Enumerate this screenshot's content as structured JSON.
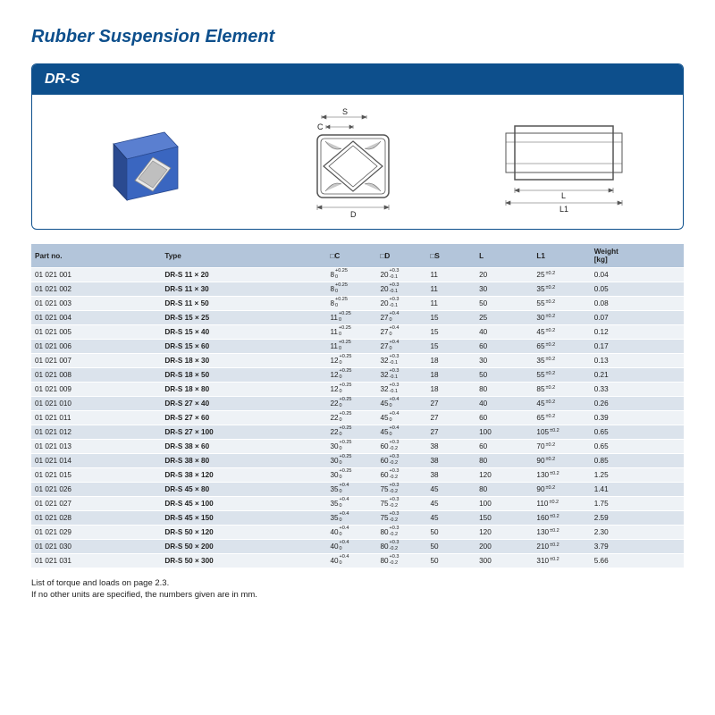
{
  "title": "Rubber Suspension Element",
  "panel_label": "DR-S",
  "colors": {
    "brand": "#0d4f8c",
    "header_bg": "#b3c5da",
    "row_even": "#dbe3ec",
    "row_odd": "#eef2f6",
    "cube_blue": "#3a66c0",
    "cube_dark": "#2a4a90",
    "line": "#555555"
  },
  "diagram_labels": {
    "S": "S",
    "C": "C",
    "D": "D",
    "L": "L",
    "L1": "L1"
  },
  "table": {
    "columns": [
      "Part no.",
      "Type",
      "□C",
      "□D",
      "□S",
      "L",
      "L1",
      "Weight [kg]"
    ],
    "rows": [
      {
        "part": "01 021 001",
        "type": "DR-S 11 × 20",
        "C": {
          "b": "8",
          "u": "+0.25",
          "l": "0"
        },
        "D": {
          "b": "20",
          "u": "+0.3",
          "l": "-0.1"
        },
        "S": "11",
        "L": "20",
        "L1": {
          "b": "25",
          "t": "±0.2"
        },
        "W": "0.04"
      },
      {
        "part": "01 021 002",
        "type": "DR-S 11 × 30",
        "C": {
          "b": "8",
          "u": "+0.25",
          "l": "0"
        },
        "D": {
          "b": "20",
          "u": "+0.3",
          "l": "-0.1"
        },
        "S": "11",
        "L": "30",
        "L1": {
          "b": "35",
          "t": "±0.2"
        },
        "W": "0.05"
      },
      {
        "part": "01 021 003",
        "type": "DR-S 11 × 50",
        "C": {
          "b": "8",
          "u": "+0.25",
          "l": "0"
        },
        "D": {
          "b": "20",
          "u": "+0.3",
          "l": "-0.1"
        },
        "S": "11",
        "L": "50",
        "L1": {
          "b": "55",
          "t": "±0.2"
        },
        "W": "0.08"
      },
      {
        "part": "01 021 004",
        "type": "DR-S 15 × 25",
        "C": {
          "b": "11",
          "u": "+0.25",
          "l": "0"
        },
        "D": {
          "b": "27",
          "u": "+0.4",
          "l": "0"
        },
        "S": "15",
        "L": "25",
        "L1": {
          "b": "30",
          "t": "±0.2"
        },
        "W": "0.07"
      },
      {
        "part": "01 021 005",
        "type": "DR-S 15 × 40",
        "C": {
          "b": "11",
          "u": "+0.25",
          "l": "0"
        },
        "D": {
          "b": "27",
          "u": "+0.4",
          "l": "0"
        },
        "S": "15",
        "L": "40",
        "L1": {
          "b": "45",
          "t": "±0.2"
        },
        "W": "0.12"
      },
      {
        "part": "01 021 006",
        "type": "DR-S 15 × 60",
        "C": {
          "b": "11",
          "u": "+0.25",
          "l": "0"
        },
        "D": {
          "b": "27",
          "u": "+0.4",
          "l": "0"
        },
        "S": "15",
        "L": "60",
        "L1": {
          "b": "65",
          "t": "±0.2"
        },
        "W": "0.17"
      },
      {
        "part": "01 021 007",
        "type": "DR-S 18 × 30",
        "C": {
          "b": "12",
          "u": "+0.25",
          "l": "0"
        },
        "D": {
          "b": "32",
          "u": "+0.3",
          "l": "-0.1"
        },
        "S": "18",
        "L": "30",
        "L1": {
          "b": "35",
          "t": "±0.2"
        },
        "W": "0.13"
      },
      {
        "part": "01 021 008",
        "type": "DR-S 18 × 50",
        "C": {
          "b": "12",
          "u": "+0.25",
          "l": "0"
        },
        "D": {
          "b": "32",
          "u": "+0.3",
          "l": "-0.1"
        },
        "S": "18",
        "L": "50",
        "L1": {
          "b": "55",
          "t": "±0.2"
        },
        "W": "0.21"
      },
      {
        "part": "01 021 009",
        "type": "DR-S 18 × 80",
        "C": {
          "b": "12",
          "u": "+0.25",
          "l": "0"
        },
        "D": {
          "b": "32",
          "u": "+0.3",
          "l": "-0.1"
        },
        "S": "18",
        "L": "80",
        "L1": {
          "b": "85",
          "t": "±0.2"
        },
        "W": "0.33"
      },
      {
        "part": "01 021 010",
        "type": "DR-S 27 × 40",
        "C": {
          "b": "22",
          "u": "+0.25",
          "l": "0"
        },
        "D": {
          "b": "45",
          "u": "+0.4",
          "l": "0"
        },
        "S": "27",
        "L": "40",
        "L1": {
          "b": "45",
          "t": "±0.2"
        },
        "W": "0.26"
      },
      {
        "part": "01 021 011",
        "type": "DR-S 27 × 60",
        "C": {
          "b": "22",
          "u": "+0.25",
          "l": "0"
        },
        "D": {
          "b": "45",
          "u": "+0.4",
          "l": "0"
        },
        "S": "27",
        "L": "60",
        "L1": {
          "b": "65",
          "t": "±0.2"
        },
        "W": "0.39"
      },
      {
        "part": "01 021 012",
        "type": "DR-S 27 × 100",
        "C": {
          "b": "22",
          "u": "+0.25",
          "l": "0"
        },
        "D": {
          "b": "45",
          "u": "+0.4",
          "l": "0"
        },
        "S": "27",
        "L": "100",
        "L1": {
          "b": "105",
          "t": "±0.2"
        },
        "W": "0.65"
      },
      {
        "part": "01 021 013",
        "type": "DR-S 38 × 60",
        "C": {
          "b": "30",
          "u": "+0.25",
          "l": "0"
        },
        "D": {
          "b": "60",
          "u": "+0.3",
          "l": "-0.2"
        },
        "S": "38",
        "L": "60",
        "L1": {
          "b": "70",
          "t": "±0.2"
        },
        "W": "0.65"
      },
      {
        "part": "01 021 014",
        "type": "DR-S 38 × 80",
        "C": {
          "b": "30",
          "u": "+0.25",
          "l": "0"
        },
        "D": {
          "b": "60",
          "u": "+0.3",
          "l": "-0.2"
        },
        "S": "38",
        "L": "80",
        "L1": {
          "b": "90",
          "t": "±0.2"
        },
        "W": "0.85"
      },
      {
        "part": "01 021 015",
        "type": "DR-S 38 × 120",
        "C": {
          "b": "30",
          "u": "+0.25",
          "l": "0"
        },
        "D": {
          "b": "60",
          "u": "+0.3",
          "l": "-0.2"
        },
        "S": "38",
        "L": "120",
        "L1": {
          "b": "130",
          "t": "±0.2"
        },
        "W": "1.25"
      },
      {
        "part": "01 021 026",
        "type": "DR-S 45 × 80",
        "C": {
          "b": "35",
          "u": "+0.4",
          "l": "0"
        },
        "D": {
          "b": "75",
          "u": "+0.3",
          "l": "-0.2"
        },
        "S": "45",
        "L": "80",
        "L1": {
          "b": "90",
          "t": "±0.2"
        },
        "W": "1.41"
      },
      {
        "part": "01 021 027",
        "type": "DR-S 45 × 100",
        "C": {
          "b": "35",
          "u": "+0.4",
          "l": "0"
        },
        "D": {
          "b": "75",
          "u": "+0.3",
          "l": "-0.2"
        },
        "S": "45",
        "L": "100",
        "L1": {
          "b": "110",
          "t": "±0.2"
        },
        "W": "1.75"
      },
      {
        "part": "01 021 028",
        "type": "DR-S 45 × 150",
        "C": {
          "b": "35",
          "u": "+0.4",
          "l": "0"
        },
        "D": {
          "b": "75",
          "u": "+0.3",
          "l": "-0.2"
        },
        "S": "45",
        "L": "150",
        "L1": {
          "b": "160",
          "t": "±0.2"
        },
        "W": "2.59"
      },
      {
        "part": "01 021 029",
        "type": "DR-S 50 × 120",
        "C": {
          "b": "40",
          "u": "+0.4",
          "l": "0"
        },
        "D": {
          "b": "80",
          "u": "+0.3",
          "l": "-0.2"
        },
        "S": "50",
        "L": "120",
        "L1": {
          "b": "130",
          "t": "±0.2"
        },
        "W": "2.30"
      },
      {
        "part": "01 021 030",
        "type": "DR-S 50 × 200",
        "C": {
          "b": "40",
          "u": "+0.4",
          "l": "0"
        },
        "D": {
          "b": "80",
          "u": "+0.3",
          "l": "-0.2"
        },
        "S": "50",
        "L": "200",
        "L1": {
          "b": "210",
          "t": "±0.2"
        },
        "W": "3.79"
      },
      {
        "part": "01 021 031",
        "type": "DR-S 50 × 300",
        "C": {
          "b": "40",
          "u": "+0.4",
          "l": "0"
        },
        "D": {
          "b": "80",
          "u": "+0.3",
          "l": "-0.2"
        },
        "S": "50",
        "L": "300",
        "L1": {
          "b": "310",
          "t": "±0.2"
        },
        "W": "5.66"
      }
    ]
  },
  "footnotes": [
    "List of torque and loads on page 2.3.",
    "If no other units are specified, the numbers given are in mm."
  ]
}
